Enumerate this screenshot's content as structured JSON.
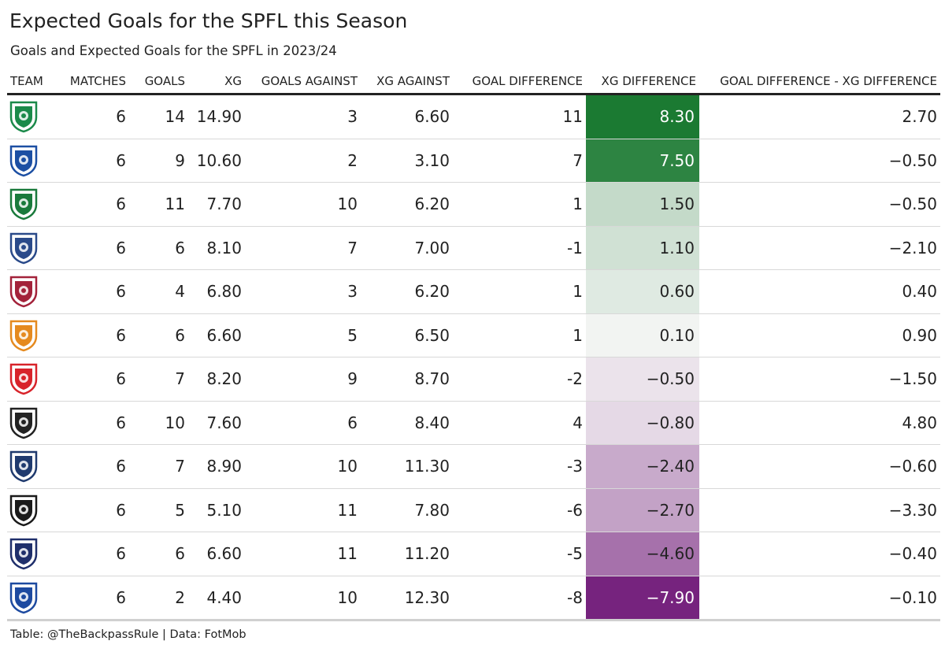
{
  "title": "Expected Goals for the SPFL this Season",
  "subtitle": "Goals and Expected Goals for the SPFL in 2023/24",
  "footer": "Table: @TheBackpassRule | Data: FotMob",
  "chart_data": {
    "type": "table",
    "columns": [
      "TEAM",
      "MATCHES",
      "GOALS",
      "XG",
      "GOALS AGAINST",
      "XG AGAINST",
      "GOAL DIFFERENCE",
      "XG DIFFERENCE",
      "GOAL DIFFERENCE - XG DIFFERENCE"
    ],
    "rows": [
      {
        "team": "celtic-crest",
        "crest_color": "#1b8a4a",
        "matches": "6",
        "goals": "14",
        "xg": "14.90",
        "goals_against": "3",
        "xg_against": "6.60",
        "goal_difference": "11",
        "xg_difference": "8.30",
        "xg_difference_value": 8.3,
        "gd_minus_xgd": "2.70"
      },
      {
        "team": "rangers-crest",
        "crest_color": "#1c4fa3",
        "matches": "6",
        "goals": "9",
        "xg": "10.60",
        "goals_against": "2",
        "xg_against": "3.10",
        "goal_difference": "7",
        "xg_difference": "7.50",
        "xg_difference_value": 7.5,
        "gd_minus_xgd": "−0.50"
      },
      {
        "team": "hibernian-crest",
        "crest_color": "#1a7a3c",
        "matches": "6",
        "goals": "11",
        "xg": "7.70",
        "goals_against": "10",
        "xg_against": "6.20",
        "goal_difference": "1",
        "xg_difference": "1.50",
        "xg_difference_value": 1.5,
        "gd_minus_xgd": "−0.50"
      },
      {
        "team": "kilmarnock-crest",
        "crest_color": "#2a4a8a",
        "matches": "6",
        "goals": "6",
        "xg": "8.10",
        "goals_against": "7",
        "xg_against": "7.00",
        "goal_difference": "-1",
        "xg_difference": "1.10",
        "xg_difference_value": 1.1,
        "gd_minus_xgd": "−2.10"
      },
      {
        "team": "hearts-crest",
        "crest_color": "#a3223a",
        "matches": "6",
        "goals": "4",
        "xg": "6.80",
        "goals_against": "3",
        "xg_against": "6.20",
        "goal_difference": "1",
        "xg_difference": "0.60",
        "xg_difference_value": 0.6,
        "gd_minus_xgd": "0.40"
      },
      {
        "team": "motherwell-crest",
        "crest_color": "#e58a1f",
        "matches": "6",
        "goals": "6",
        "xg": "6.60",
        "goals_against": "5",
        "xg_against": "6.50",
        "goal_difference": "1",
        "xg_difference": "0.10",
        "xg_difference_value": 0.1,
        "gd_minus_xgd": "0.90"
      },
      {
        "team": "aberdeen-crest",
        "crest_color": "#d8232a",
        "matches": "6",
        "goals": "7",
        "xg": "8.20",
        "goals_against": "9",
        "xg_against": "8.70",
        "goal_difference": "-2",
        "xg_difference": "−0.50",
        "xg_difference_value": -0.5,
        "gd_minus_xgd": "−1.50"
      },
      {
        "team": "st-mirren-crest",
        "crest_color": "#222222",
        "matches": "6",
        "goals": "10",
        "xg": "7.60",
        "goals_against": "6",
        "xg_against": "8.40",
        "goal_difference": "4",
        "xg_difference": "−0.80",
        "xg_difference_value": -0.8,
        "gd_minus_xgd": "4.80"
      },
      {
        "team": "dundee-crest",
        "crest_color": "#1f3a6e",
        "matches": "6",
        "goals": "7",
        "xg": "8.90",
        "goals_against": "10",
        "xg_against": "11.30",
        "goal_difference": "-3",
        "xg_difference": "−2.40",
        "xg_difference_value": -2.4,
        "gd_minus_xgd": "−0.60"
      },
      {
        "team": "livingston-crest",
        "crest_color": "#1a1a1a",
        "matches": "6",
        "goals": "5",
        "xg": "5.10",
        "goals_against": "11",
        "xg_against": "7.80",
        "goal_difference": "-6",
        "xg_difference": "−2.70",
        "xg_difference_value": -2.7,
        "gd_minus_xgd": "−3.30"
      },
      {
        "team": "ross-county-crest",
        "crest_color": "#1f2f6b",
        "matches": "6",
        "goals": "6",
        "xg": "6.60",
        "goals_against": "11",
        "xg_against": "11.20",
        "goal_difference": "-5",
        "xg_difference": "−4.60",
        "xg_difference_value": -4.6,
        "gd_minus_xgd": "−0.40"
      },
      {
        "team": "st-johnstone-crest",
        "crest_color": "#1d4aa0",
        "matches": "6",
        "goals": "2",
        "xg": "4.40",
        "goals_against": "10",
        "xg_against": "12.30",
        "goal_difference": "-8",
        "xg_difference": "−7.90",
        "xg_difference_value": -7.9,
        "gd_minus_xgd": "−0.10"
      }
    ],
    "color_scale": {
      "column": "XG DIFFERENCE",
      "positive": "#1b7a32",
      "negative": "#76237e",
      "neutral": "#f7f7f7",
      "max": 8.3,
      "min": -7.9
    }
  }
}
